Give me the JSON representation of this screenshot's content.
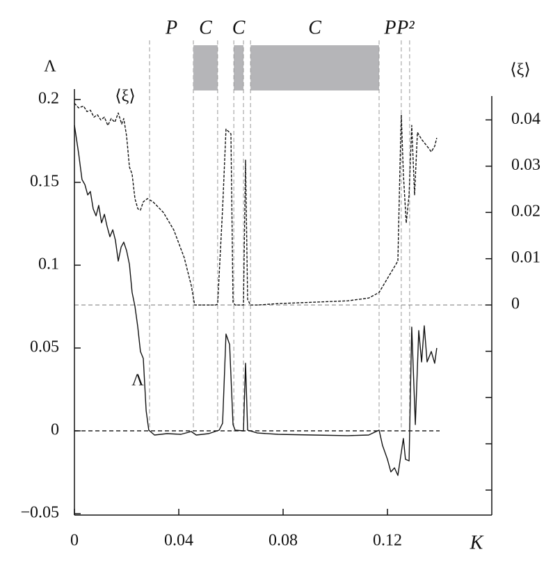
{
  "chart_data": {
    "type": "line",
    "x_label": "K",
    "y_label": "Λ",
    "y2_label": "⟨ξ⟩",
    "xlim": [
      0,
      0.16
    ],
    "xticks": [
      0,
      0.04,
      0.08,
      0.12
    ],
    "ylim": [
      -0.05,
      0.2
    ],
    "yticks": [
      0.2,
      0.15,
      0.1,
      0.05,
      0,
      {
        "value": -0.05,
        "label": "−0.05"
      }
    ],
    "y2lim": [
      -0.0451,
      0.0444
    ],
    "y2ticks": [
      0.04,
      0.03,
      0.02,
      0.01,
      0
    ],
    "y2_unlabeled_ticks": [
      -0.01,
      -0.02,
      -0.03,
      -0.04
    ],
    "reference_lines": [
      {
        "axis": "y",
        "value": 0,
        "color": "#222"
      },
      {
        "axis": "y2",
        "value": 0,
        "color": "#777"
      }
    ],
    "regions": [
      {
        "label": "P",
        "from": 0.0288,
        "to": 0.0456
      },
      {
        "label": "C",
        "from": 0.0456,
        "to": 0.0549,
        "shaded": true
      },
      {
        "label": "C",
        "from": 0.0611,
        "to": 0.0648,
        "shaded": true
      },
      {
        "label": "C",
        "from": 0.0675,
        "to": 0.1168,
        "shaded": true
      },
      {
        "label": "P",
        "from": 0.1168,
        "to": 0.1253
      },
      {
        "label": "P²",
        "from": 0.1253,
        "to": 0.1285
      }
    ],
    "series": [
      {
        "name": "Λ",
        "color": "#111",
        "dashed": false,
        "x": [
          0,
          0.0016,
          0.0029,
          0.004,
          0.0051,
          0.0061,
          0.0072,
          0.0083,
          0.0093,
          0.0104,
          0.0115,
          0.0125,
          0.0136,
          0.0147,
          0.0157,
          0.0168,
          0.0179,
          0.0189,
          0.02,
          0.0211,
          0.0221,
          0.0232,
          0.0243,
          0.0253,
          0.0264,
          0.0275,
          0.0285,
          0.0307,
          0.0355,
          0.0408,
          0.0448,
          0.0467,
          0.0515,
          0.0555,
          0.0568,
          0.0581,
          0.0595,
          0.0608,
          0.0616,
          0.0648,
          0.0656,
          0.0664,
          0.0701,
          0.0781,
          0.0915,
          0.1048,
          0.1128,
          0.1168,
          0.1181,
          0.12,
          0.1213,
          0.1227,
          0.124,
          0.1253,
          0.1261,
          0.1269,
          0.1283,
          0.1293,
          0.1307,
          0.132,
          0.1331,
          0.1341,
          0.1352,
          0.1368,
          0.1381,
          0.1389
        ],
        "values": [
          0.1845,
          0.1676,
          0.1517,
          0.1487,
          0.1424,
          0.1445,
          0.134,
          0.1298,
          0.1361,
          0.1256,
          0.1307,
          0.1235,
          0.1172,
          0.1214,
          0.1151,
          0.1025,
          0.1109,
          0.1139,
          0.1088,
          0.1004,
          0.0836,
          0.0752,
          0.0626,
          0.0479,
          0.0437,
          0.0122,
          0.0004,
          -0.0025,
          -0.0017,
          -0.0021,
          -0.0004,
          -0.0025,
          -0.0017,
          0.0004,
          0.0046,
          0.0584,
          0.0521,
          0.0038,
          0.0004,
          0,
          0.0408,
          0.0004,
          -0.0013,
          -0.0021,
          -0.0025,
          -0.0029,
          -0.0025,
          0.0004,
          -0.0088,
          -0.0172,
          -0.0248,
          -0.0223,
          -0.0269,
          -0.013,
          -0.0046,
          -0.0172,
          -0.0181,
          0.0626,
          0.0038,
          0.0605,
          0.0416,
          0.0634,
          0.0416,
          0.0479,
          0.0408,
          0.05
        ]
      },
      {
        "name": "⟨ξ⟩",
        "color": "#111",
        "dashed": true,
        "axis": "y2",
        "x": [
          0,
          0.0016,
          0.0035,
          0.0048,
          0.0061,
          0.0075,
          0.0088,
          0.0101,
          0.0115,
          0.0128,
          0.0141,
          0.0155,
          0.0168,
          0.0181,
          0.0189,
          0.02,
          0.0211,
          0.0221,
          0.0232,
          0.0243,
          0.0253,
          0.0264,
          0.028,
          0.0301,
          0.0341,
          0.0381,
          0.0421,
          0.0448,
          0.0461,
          0.0488,
          0.0541,
          0.0549,
          0.0568,
          0.0581,
          0.06,
          0.0608,
          0.0616,
          0.0648,
          0.0656,
          0.0664,
          0.0675,
          0.0701,
          0.0781,
          0.0915,
          0.1048,
          0.1128,
          0.1168,
          0.1208,
          0.124,
          0.1248,
          0.1253,
          0.1261,
          0.1272,
          0.1283,
          0.1293,
          0.1304,
          0.1315,
          0.1331,
          0.1352,
          0.1368,
          0.1381,
          0.1389
        ],
        "values": [
          0.0436,
          0.0426,
          0.043,
          0.0418,
          0.0421,
          0.0406,
          0.0411,
          0.04,
          0.0406,
          0.0388,
          0.0403,
          0.0395,
          0.0415,
          0.0391,
          0.0403,
          0.0365,
          0.0298,
          0.0283,
          0.023,
          0.0208,
          0.0205,
          0.0223,
          0.023,
          0.0223,
          0.02,
          0.0162,
          0.0102,
          0.0042,
          0,
          0,
          0,
          0.0002,
          0.0208,
          0.038,
          0.037,
          0.0005,
          0,
          0,
          0.0313,
          0.0012,
          0,
          0,
          0.0003,
          0.0006,
          0.0009,
          0.0015,
          0.0027,
          0.0065,
          0.0095,
          0.0298,
          0.0411,
          0.0283,
          0.0177,
          0.0238,
          0.0388,
          0.0238,
          0.0373,
          0.0358,
          0.0343,
          0.0331,
          0.0343,
          0.0361
        ]
      }
    ]
  }
}
